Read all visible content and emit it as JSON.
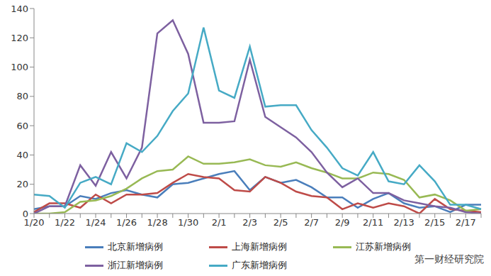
{
  "chart_data": {
    "type": "line",
    "categories": [
      "1/20",
      null,
      "1/22",
      null,
      "1/24",
      null,
      "1/26",
      null,
      "1/28",
      null,
      "1/30",
      null,
      "2/1",
      null,
      "2/3",
      null,
      "2/5",
      null,
      "2/7",
      null,
      "2/9",
      null,
      "2/11",
      null,
      "2/13",
      null,
      "2/15",
      null,
      "2/17",
      null
    ],
    "series": [
      {
        "name": "北京新增病例",
        "color": "#4a7ebb",
        "values": [
          3,
          5,
          5,
          12,
          10,
          14,
          16,
          13,
          11,
          20,
          21,
          24,
          27,
          29,
          16,
          25,
          21,
          23,
          18,
          11,
          11,
          4,
          10,
          14,
          7,
          4,
          5,
          1,
          6,
          6
        ]
      },
      {
        "name": "上海新增病例",
        "color": "#be4b48",
        "values": [
          1,
          7,
          7,
          4,
          13,
          7,
          13,
          13,
          14,
          21,
          27,
          25,
          24,
          16,
          15,
          25,
          21,
          15,
          12,
          11,
          3,
          7,
          4,
          7,
          5,
          0,
          10,
          3,
          2,
          1
        ]
      },
      {
        "name": "江苏新增病例",
        "color": "#98b954",
        "values": [
          0,
          0,
          1,
          8,
          9,
          12,
          17,
          24,
          29,
          30,
          39,
          34,
          34,
          35,
          37,
          33,
          32,
          35,
          31,
          28,
          24,
          24,
          28,
          27,
          23,
          11,
          13,
          9,
          2,
          3
        ]
      },
      {
        "name": "浙江新增病例",
        "color": "#7d60a0",
        "values": [
          0,
          5,
          5,
          33,
          19,
          42,
          24,
          45,
          123,
          132,
          109,
          62,
          62,
          63,
          105,
          66,
          59,
          52,
          42,
          28,
          18,
          24,
          14,
          14,
          9,
          7,
          5,
          4,
          1,
          0
        ]
      },
      {
        "name": "广东新增病例",
        "color": "#46aac5",
        "values": [
          13,
          12,
          4,
          21,
          25,
          20,
          48,
          42,
          53,
          70,
          82,
          127,
          84,
          79,
          114,
          73,
          74,
          74,
          57,
          45,
          31,
          26,
          42,
          22,
          20,
          33,
          22,
          6,
          6,
          3
        ]
      }
    ],
    "ylim": [
      0,
      140
    ],
    "yticks": [
      0,
      20,
      40,
      60,
      80,
      100,
      120,
      140
    ],
    "grid": false,
    "legend": "bottom",
    "annotation": "第一财经研究院"
  }
}
